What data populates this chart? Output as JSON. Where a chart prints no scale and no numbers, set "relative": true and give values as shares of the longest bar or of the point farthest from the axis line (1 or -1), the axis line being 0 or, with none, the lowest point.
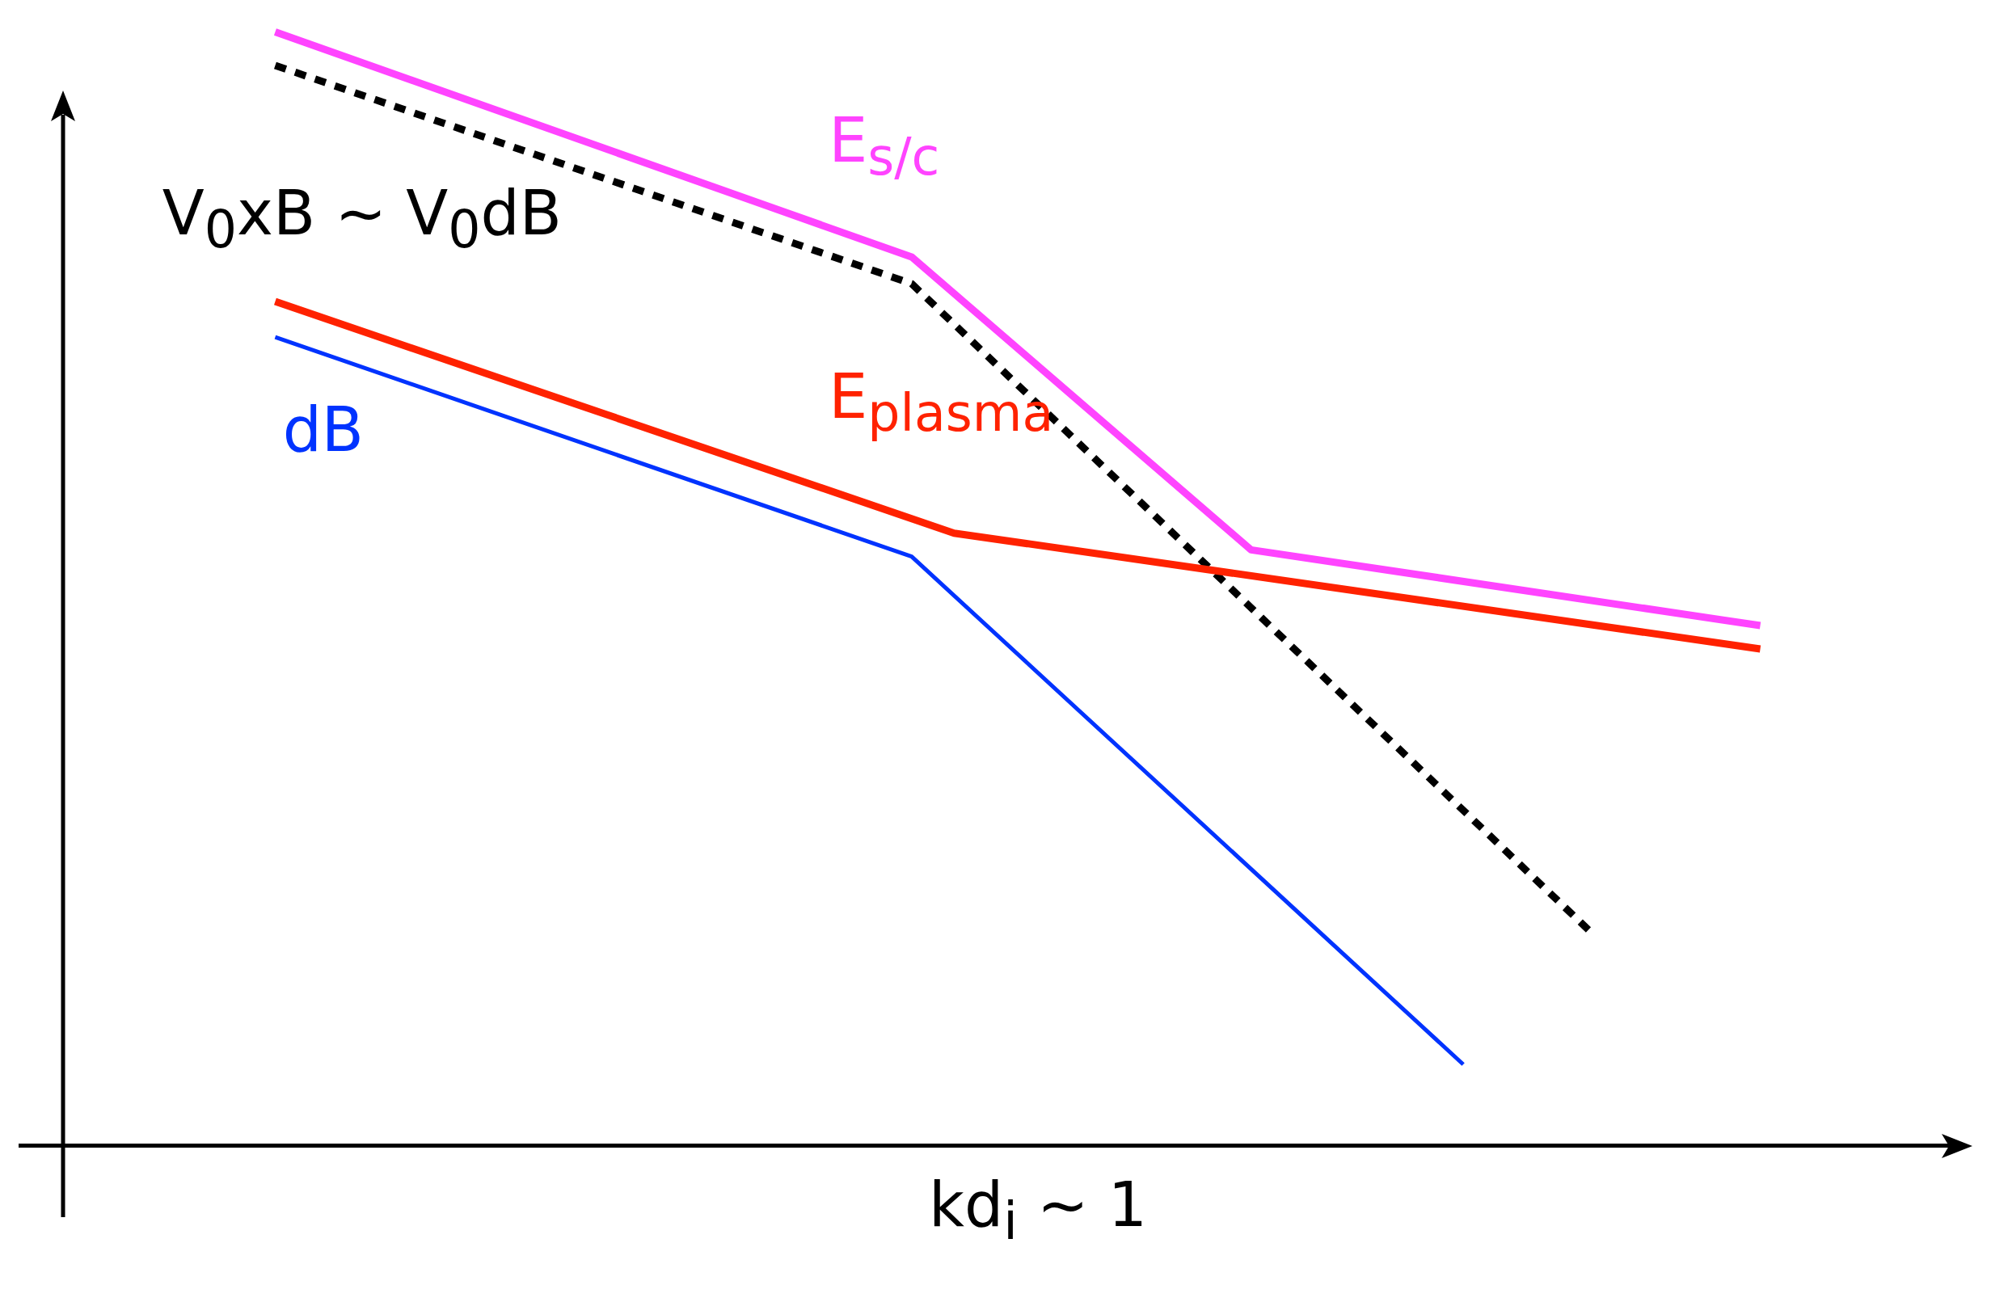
{
  "chart_data": {
    "type": "line",
    "relative": true,
    "xlabel": "kd$_{i}$ ~ 1",
    "grid": false,
    "legend": false,
    "marker": "none",
    "categories": [
      null,
      null,
      null,
      null,
      null,
      null,
      null,
      null,
      null,
      null,
      null,
      null,
      null,
      null,
      null,
      null,
      null,
      null,
      null,
      null,
      null,
      null,
      null,
      null,
      null,
      null,
      null,
      null,
      null,
      null,
      null,
      null,
      null,
      null,
      null,
      null,
      null,
      null,
      null,
      null,
      null,
      null,
      null,
      null,
      null,
      null
    ],
    "series": [
      {
        "name": "E$_{s/c}$",
        "color": "#ff44ff",
        "values": [
          null,
          null,
          null,
          null,
          null,
          1.0,
          null,
          null,
          null,
          null,
          null,
          null,
          null,
          null,
          null,
          null,
          null,
          null,
          null,
          null,
          0.798,
          null,
          null,
          null,
          null,
          null,
          null,
          null,
          0.535,
          null,
          null,
          null,
          null,
          null,
          null,
          null,
          null,
          null,
          null,
          null,
          0.467,
          null,
          null,
          null,
          null,
          null
        ]
      },
      {
        "name": "E$_{plasma}$",
        "color": "#ff2200",
        "values": [
          null,
          null,
          null,
          null,
          null,
          0.758,
          null,
          null,
          null,
          null,
          null,
          null,
          null,
          null,
          null,
          null,
          null,
          null,
          null,
          null,
          null,
          0.55,
          null,
          null,
          null,
          null,
          null,
          null,
          null,
          null,
          null,
          null,
          null,
          null,
          null,
          null,
          null,
          null,
          null,
          null,
          0.446,
          null,
          null,
          null,
          null,
          null
        ]
      },
      {
        "name": "dB",
        "color": "#0033ff",
        "values": [
          null,
          null,
          null,
          null,
          null,
          0.726,
          null,
          null,
          null,
          null,
          null,
          null,
          null,
          null,
          null,
          null,
          null,
          null,
          null,
          null,
          0.529,
          null,
          null,
          null,
          null,
          null,
          null,
          null,
          null,
          null,
          null,
          null,
          null,
          0.073,
          null,
          null,
          null,
          null,
          null,
          null,
          null,
          null,
          null,
          null,
          null,
          null
        ]
      },
      {
        "name": "V$_{0}$xB ~ V$_{0}$dB",
        "color": "#000000",
        "line_style": "dashed",
        "values": [
          null,
          null,
          null,
          null,
          null,
          0.97,
          null,
          null,
          null,
          null,
          null,
          null,
          null,
          null,
          null,
          null,
          null,
          null,
          null,
          null,
          0.774,
          null,
          null,
          null,
          null,
          null,
          null,
          null,
          null,
          null,
          null,
          null,
          null,
          null,
          null,
          null,
          0.192,
          null,
          null,
          null,
          null,
          null,
          null,
          null,
          null,
          null
        ]
      }
    ]
  }
}
